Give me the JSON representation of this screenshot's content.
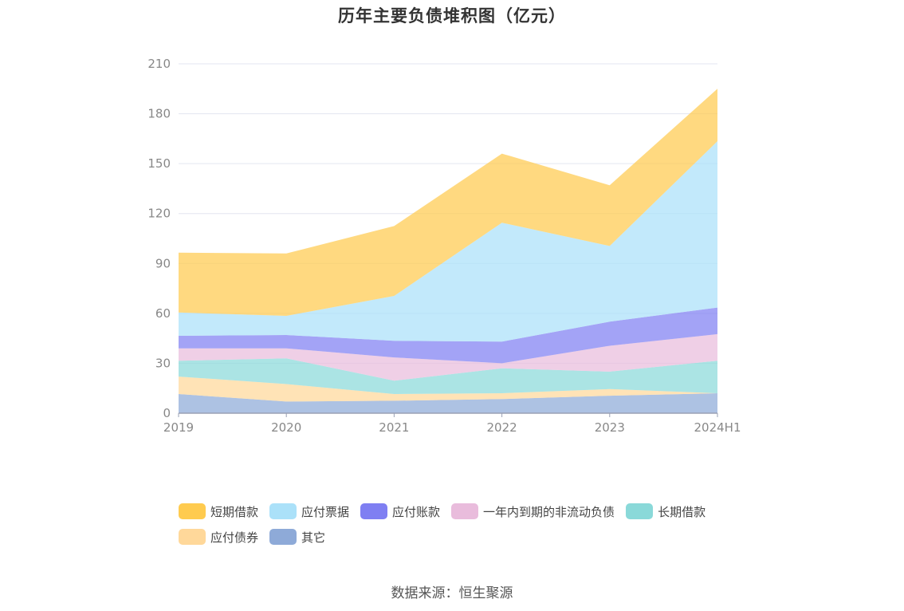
{
  "chart_data": {
    "type": "area",
    "stacked": true,
    "title": "历年主要负债堆积图（亿元）",
    "categories": [
      "2019",
      "2020",
      "2021",
      "2022",
      "2023",
      "2024H1"
    ],
    "ylim": [
      0,
      210
    ],
    "yticks": [
      0,
      30,
      60,
      90,
      120,
      150,
      180,
      210
    ],
    "grid": true,
    "legend_position": "bottom",
    "series": [
      {
        "name": "其它",
        "color": "#8eaad8",
        "values": [
          11.5,
          7,
          7.5,
          8.5,
          10.5,
          12
        ]
      },
      {
        "name": "应付债券",
        "color": "#ffd89a",
        "values": [
          10.5,
          10.5,
          4,
          3.5,
          4,
          0
        ]
      },
      {
        "name": "长期借款",
        "color": "#8ad9d9",
        "values": [
          9.5,
          15.5,
          8,
          15,
          10.5,
          19.5
        ]
      },
      {
        "name": "一年内到期的非流动负债",
        "color": "#e9bcdc",
        "values": [
          7.5,
          6,
          14,
          3,
          15.5,
          16
        ]
      },
      {
        "name": "应付账款",
        "color": "#7f7ff2",
        "values": [
          7.5,
          8,
          10,
          13,
          14.5,
          16
        ]
      },
      {
        "name": "应付票据",
        "color": "#abe1f9",
        "values": [
          14,
          11.5,
          27,
          71.5,
          45.5,
          100
        ]
      },
      {
        "name": "短期借款",
        "color": "#ffcb4f",
        "values": [
          36,
          37.5,
          42,
          41.5,
          36.5,
          31.5
        ]
      }
    ]
  },
  "legend_order": [
    "短期借款",
    "应付票据",
    "应付账款",
    "一年内到期的非流动负债",
    "长期借款",
    "应付债券",
    "其它"
  ],
  "source": "数据来源：恒生聚源"
}
